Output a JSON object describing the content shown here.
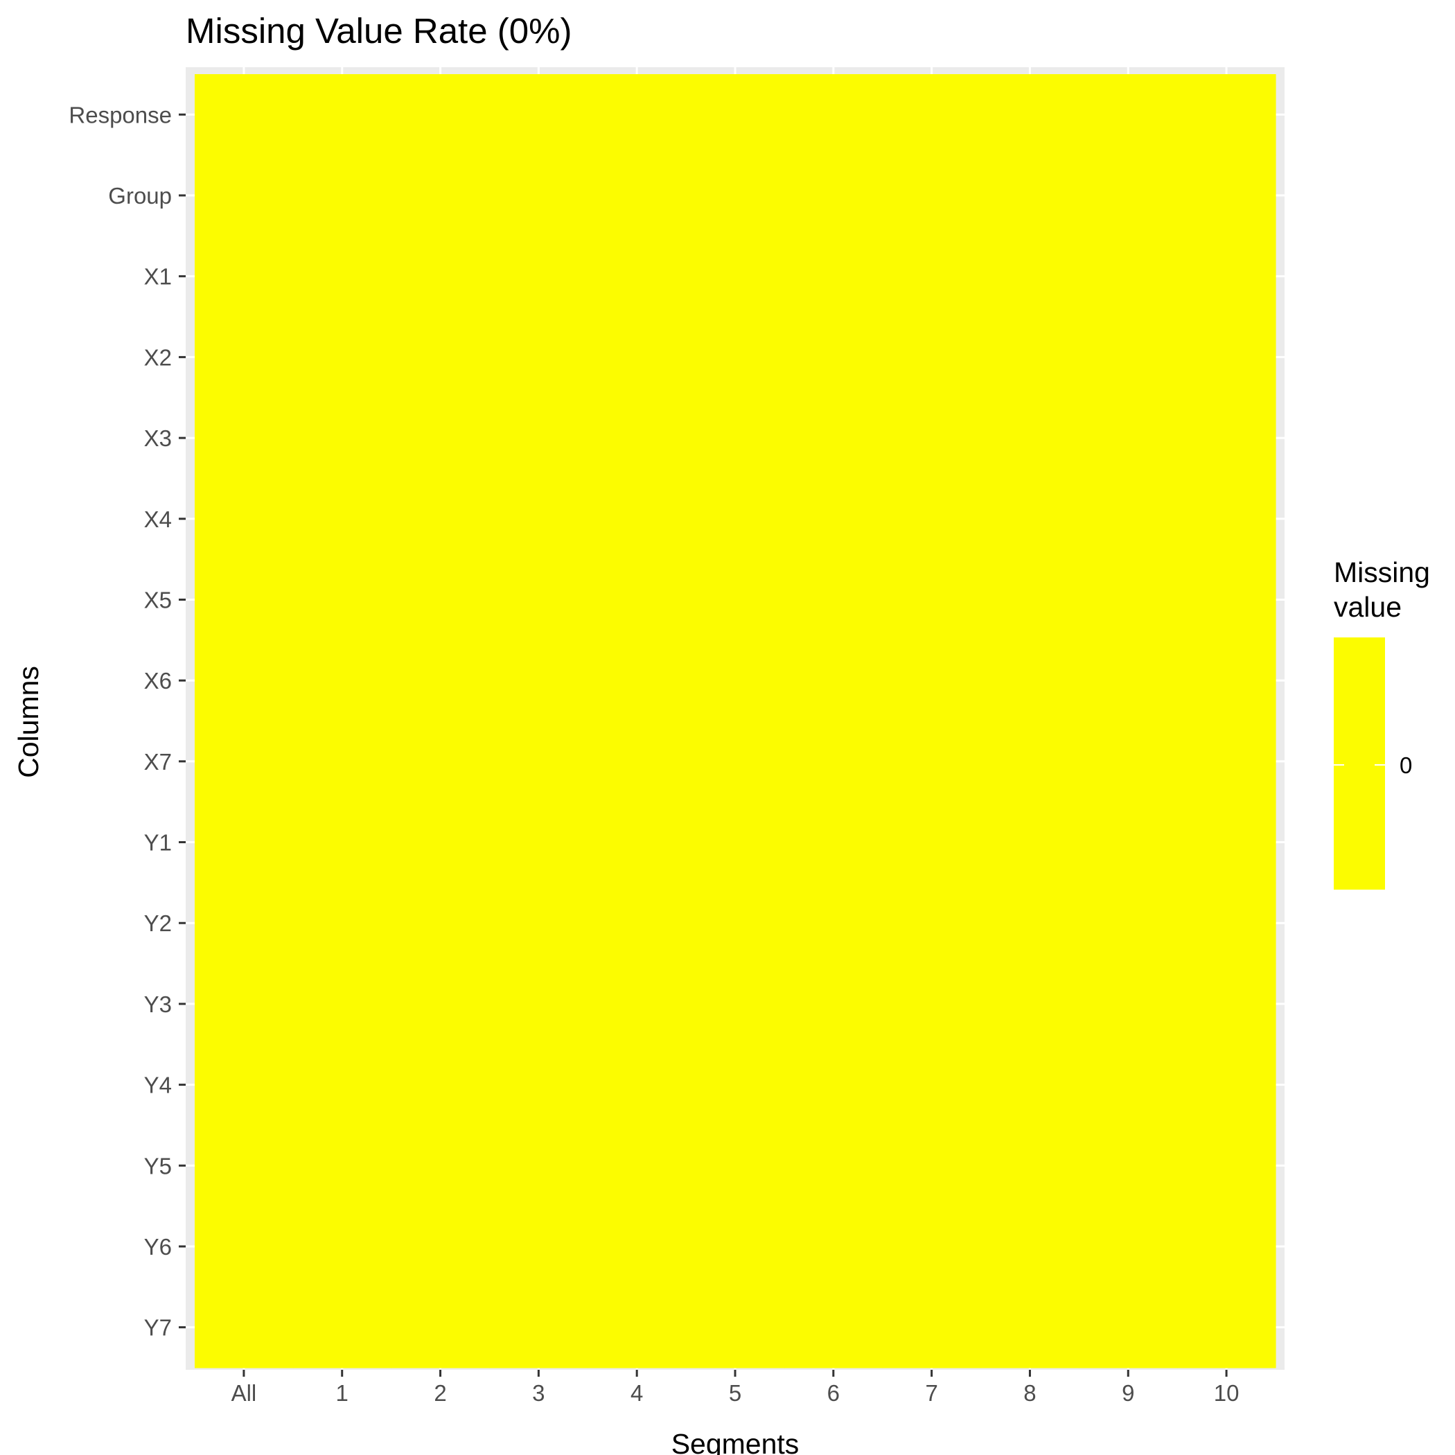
{
  "chart_data": {
    "type": "heatmap",
    "title": "Missing Value Rate (0%)",
    "xlabel": "Segments",
    "ylabel": "Columns",
    "x_categories": [
      "All",
      "1",
      "2",
      "3",
      "4",
      "5",
      "6",
      "7",
      "8",
      "9",
      "10"
    ],
    "y_categories": [
      "Response",
      "Group",
      "X1",
      "X2",
      "X3",
      "X4",
      "X5",
      "X6",
      "X7",
      "Y1",
      "Y2",
      "Y3",
      "Y4",
      "Y5",
      "Y6",
      "Y7"
    ],
    "values": [
      [
        0,
        0,
        0,
        0,
        0,
        0,
        0,
        0,
        0,
        0,
        0
      ],
      [
        0,
        0,
        0,
        0,
        0,
        0,
        0,
        0,
        0,
        0,
        0
      ],
      [
        0,
        0,
        0,
        0,
        0,
        0,
        0,
        0,
        0,
        0,
        0
      ],
      [
        0,
        0,
        0,
        0,
        0,
        0,
        0,
        0,
        0,
        0,
        0
      ],
      [
        0,
        0,
        0,
        0,
        0,
        0,
        0,
        0,
        0,
        0,
        0
      ],
      [
        0,
        0,
        0,
        0,
        0,
        0,
        0,
        0,
        0,
        0,
        0
      ],
      [
        0,
        0,
        0,
        0,
        0,
        0,
        0,
        0,
        0,
        0,
        0
      ],
      [
        0,
        0,
        0,
        0,
        0,
        0,
        0,
        0,
        0,
        0,
        0
      ],
      [
        0,
        0,
        0,
        0,
        0,
        0,
        0,
        0,
        0,
        0,
        0
      ],
      [
        0,
        0,
        0,
        0,
        0,
        0,
        0,
        0,
        0,
        0,
        0
      ],
      [
        0,
        0,
        0,
        0,
        0,
        0,
        0,
        0,
        0,
        0,
        0
      ],
      [
        0,
        0,
        0,
        0,
        0,
        0,
        0,
        0,
        0,
        0,
        0
      ],
      [
        0,
        0,
        0,
        0,
        0,
        0,
        0,
        0,
        0,
        0,
        0
      ],
      [
        0,
        0,
        0,
        0,
        0,
        0,
        0,
        0,
        0,
        0,
        0
      ],
      [
        0,
        0,
        0,
        0,
        0,
        0,
        0,
        0,
        0,
        0,
        0
      ],
      [
        0,
        0,
        0,
        0,
        0,
        0,
        0,
        0,
        0,
        0,
        0
      ]
    ],
    "legend": {
      "title_lines": [
        "Missing",
        "value"
      ],
      "tick_labels": [
        "0"
      ],
      "placement": "right"
    },
    "grid": true,
    "colors": {
      "fill": "#fcfc00",
      "panel": "#ebebeb",
      "gridline": "#ffffff",
      "tick": "#333333"
    }
  }
}
